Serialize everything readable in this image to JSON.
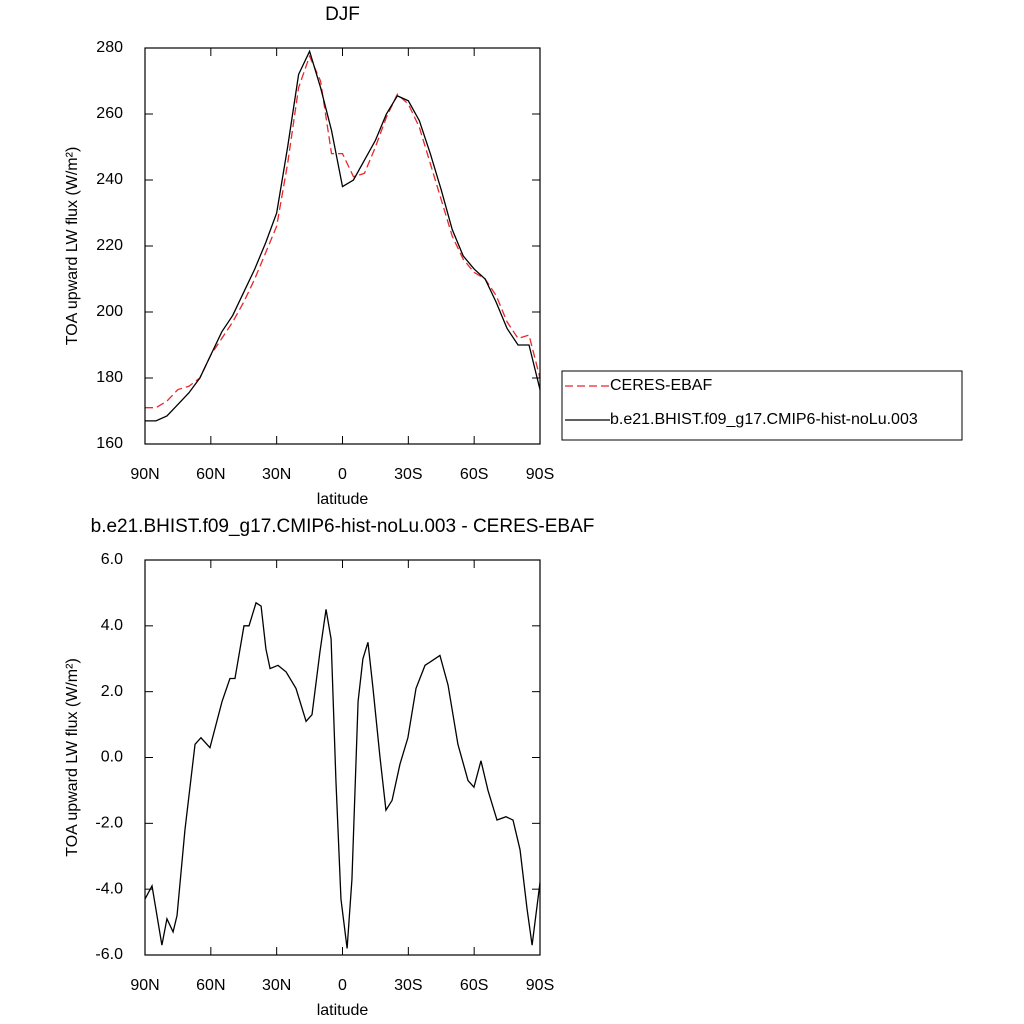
{
  "chart_data": [
    {
      "type": "line",
      "title": "DJF",
      "xlabel": "latitude",
      "ylabel": "TOA upward LW flux (W/m²)",
      "x": [
        90,
        85,
        80,
        75,
        70,
        65,
        60,
        55,
        50,
        45,
        40,
        35,
        30,
        25,
        20,
        15,
        10,
        5,
        0,
        -5,
        -10,
        -15,
        -20,
        -25,
        -30,
        -35,
        -40,
        -45,
        -50,
        -55,
        -60,
        -65,
        -70,
        -75,
        -80,
        -85,
        -90
      ],
      "series": [
        {
          "name": "CERES-EBAF",
          "color": "#e8282b",
          "line_style": "dashed",
          "values": [
            171,
            171,
            173,
            176.5,
            177.5,
            180,
            187,
            192,
            197,
            203,
            210,
            218,
            226,
            245,
            268,
            277.5,
            270,
            248,
            248,
            241,
            242,
            250,
            259,
            266,
            263,
            256,
            245,
            234,
            223,
            216,
            212,
            210,
            205,
            197,
            192,
            193,
            180
          ]
        },
        {
          "name": "b.e21.BHIST.f09_g17.CMIP6-hist-noLu.003",
          "color": "#000000",
          "line_style": "solid",
          "values": [
            167,
            167,
            168.5,
            172,
            175.5,
            180,
            187,
            194,
            199,
            206,
            213,
            221,
            230,
            250,
            272,
            279,
            268,
            255,
            238,
            240,
            246,
            252,
            260,
            265.5,
            264,
            258,
            248,
            237,
            225,
            217,
            213,
            210,
            203,
            195,
            190,
            190,
            176.5
          ]
        }
      ],
      "xlim": [
        90,
        -90
      ],
      "xticks": [
        {
          "value": 90,
          "label": "90N"
        },
        {
          "value": 60,
          "label": "60N"
        },
        {
          "value": 30,
          "label": "30N"
        },
        0,
        {
          "value": -30,
          "label": "30S"
        },
        {
          "value": -60,
          "label": "60S"
        },
        {
          "value": -90,
          "label": "90S"
        }
      ],
      "ylim": [
        160,
        280
      ],
      "yticks": [
        160,
        180,
        200,
        220,
        240,
        260,
        280
      ],
      "legend": "right"
    },
    {
      "type": "line",
      "title": "b.e21.BHIST.f09_g17.CMIP6-hist-noLu.003 - CERES-EBAF",
      "xlabel": "latitude",
      "ylabel": "TOA upward LW flux (W/m²)",
      "x": [
        90,
        86.8,
        82.3,
        80,
        77.2,
        75.4,
        71.8,
        67.2,
        64.5,
        60.4,
        54.9,
        51.3,
        49,
        44.9,
        42.6,
        39.4,
        37.1,
        34.9,
        33,
        29.4,
        25.7,
        21.2,
        16.6,
        13.9,
        10.3,
        7.5,
        5.2,
        3,
        0.7,
        -2.1,
        -4.3,
        -7.1,
        -9.3,
        -11.6,
        -13.9,
        -17.1,
        -19.8,
        -22.6,
        -26.2,
        -29.8,
        -33.5,
        -37.6,
        -39.9,
        -44.4,
        -48.1,
        -52.6,
        -57.2,
        -59.9,
        -63.1,
        -66.3,
        -70.4,
        -74.5,
        -77.7,
        -80.9,
        -84.1,
        -86.4,
        -90
      ],
      "series": [
        {
          "name": "b.e21.BHIST.f09_g17.CMIP6-hist-noLu.003 - CERES-EBAF",
          "color": "#000000",
          "line_style": "solid",
          "values": [
            -4.3,
            -3.9,
            -5.7,
            -4.9,
            -5.3,
            -4.8,
            -2.2,
            0.4,
            0.6,
            0.3,
            1.7,
            2.4,
            2.4,
            4.0,
            4.0,
            4.7,
            4.6,
            3.3,
            2.7,
            2.8,
            2.6,
            2.1,
            1.1,
            1.3,
            3.2,
            4.5,
            3.6,
            -0.7,
            -4.3,
            -5.8,
            -3.7,
            1.7,
            3.0,
            3.5,
            2.1,
            0.0,
            -1.6,
            -1.3,
            -0.2,
            0.6,
            2.1,
            2.8,
            2.9,
            3.1,
            2.2,
            0.4,
            -0.7,
            -0.9,
            -0.1,
            -1.0,
            -1.9,
            -1.8,
            -1.9,
            -2.8,
            -4.6,
            -5.7,
            -3.8
          ]
        }
      ],
      "xlim": [
        90,
        -90
      ],
      "xticks": [
        {
          "value": 90,
          "label": "90N"
        },
        {
          "value": 60,
          "label": "60N"
        },
        {
          "value": 30,
          "label": "30N"
        },
        0,
        {
          "value": -30,
          "label": "30S"
        },
        {
          "value": -60,
          "label": "60S"
        },
        {
          "value": -90,
          "label": "90S"
        }
      ],
      "ylim": [
        -6,
        6
      ],
      "yticks": [
        {
          "value": -6,
          "label": "-6.0"
        },
        {
          "value": -4,
          "label": "-4.0"
        },
        {
          "value": -2,
          "label": "-2.0"
        },
        {
          "value": 0,
          "label": "0.0"
        },
        {
          "value": 2,
          "label": "2.0"
        },
        {
          "value": 4,
          "label": "4.0"
        },
        {
          "value": 6,
          "label": "6.0"
        }
      ]
    }
  ]
}
